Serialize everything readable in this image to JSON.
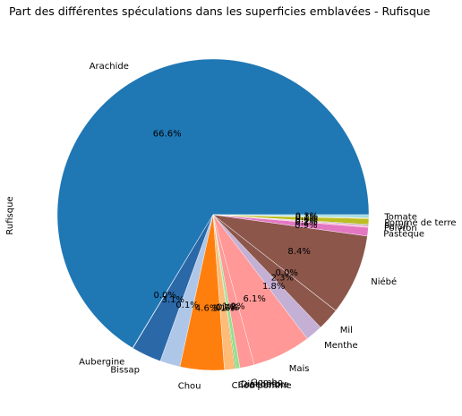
{
  "chart_data": {
    "type": "pie",
    "title": "Part des différentes spéculations dans les superficies emblavées - Rufisque",
    "ylabel": "Rufisque",
    "start_angle_deg": 0,
    "direction": "counterclockwise",
    "slices": [
      {
        "label": "Arachide",
        "value": 66.6,
        "pct_label": "66.6%",
        "color": "#1f77b4"
      },
      {
        "label": "Aubergine",
        "value": 0.05,
        "pct_label": "0.0%",
        "color": "#aec7e8"
      },
      {
        "label": "Bissap",
        "value": 3.1,
        "pct_label": "3.1%",
        "color": "#2a68a8"
      },
      {
        "label": "",
        "value": 2.1,
        "pct_label": "0.1%",
        "color": "#aec7e8"
      },
      {
        "label": "Chou",
        "value": 4.6,
        "pct_label": "4.6%",
        "color": "#ff7f0e"
      },
      {
        "label": "Chou pomme",
        "value": 1.1,
        "pct_label": "1.1%",
        "color": "#ffbb78"
      },
      {
        "label": "Concombre",
        "value": 0.1,
        "pct_label": "0.1%",
        "color": "#2ca02c"
      },
      {
        "label": "Diakhatou",
        "value": 0.4,
        "pct_label": "0.4%",
        "color": "#98df8a"
      },
      {
        "label": "Gombo",
        "value": 1.5,
        "pct_label": "1.2%",
        "color": "#ff9896"
      },
      {
        "label": "Mais",
        "value": 6.1,
        "pct_label": "6.1%",
        "color": "#ff9896"
      },
      {
        "label": "Menthe",
        "value": 1.8,
        "pct_label": "1.8%",
        "color": "#c5b0d5"
      },
      {
        "label": "Mil",
        "value": 2.3,
        "pct_label": "2.3%",
        "color": "#8c564b"
      },
      {
        "label": "",
        "value": 0.02,
        "pct_label": "0.0%",
        "color": "#8c564b"
      },
      {
        "label": "Niébé",
        "value": 8.4,
        "pct_label": "8.4%",
        "color": "#8c564b"
      },
      {
        "label": "Pastèque",
        "value": 0.9,
        "pct_label": "0.9%",
        "color": "#e377c2"
      },
      {
        "label": "Poivron",
        "value": 0.2,
        "pct_label": "0.2%",
        "color": "#f7b6d2"
      },
      {
        "label": "Persil",
        "value": 0.1,
        "pct_label": "0.1%",
        "color": "#7f7f7f"
      },
      {
        "label": "Pomme de terre",
        "value": 0.6,
        "pct_label": "0.6%",
        "color": "#bcbd22"
      },
      {
        "label": "",
        "value": 0.1,
        "pct_label": "0.1%",
        "color": "#dbdb8d"
      },
      {
        "label": "Tomate",
        "value": 0.3,
        "pct_label": "0.3%",
        "color": "#9edae5"
      }
    ],
    "legend": "none"
  }
}
